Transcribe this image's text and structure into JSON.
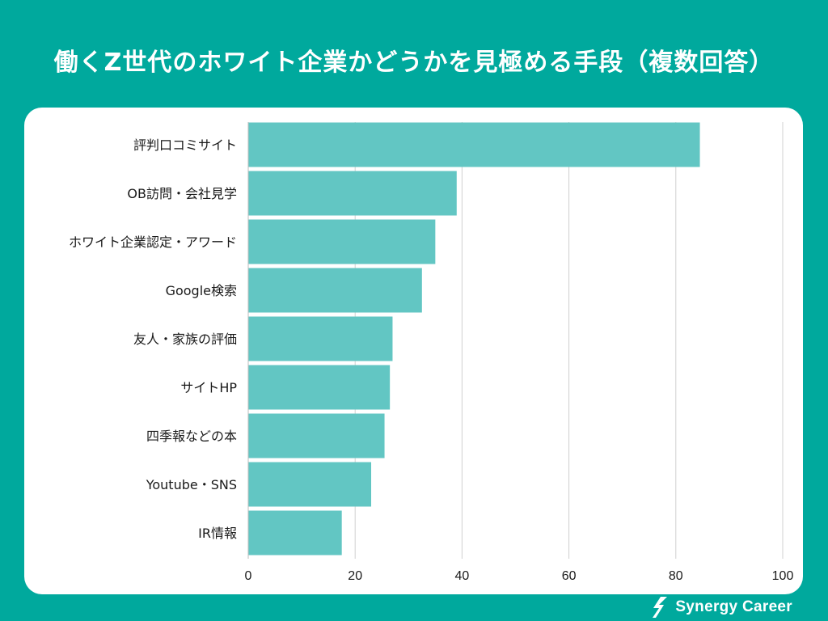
{
  "header": {
    "title": "働くZ世代のホワイト企業かどうかを見極める手段（複数回答）"
  },
  "brand": {
    "name": "Synergy Career",
    "logo_icon": "synergy-career-mark-icon"
  },
  "colors": {
    "background": "#00a99d",
    "bar": "#62c6c3",
    "card": "#ffffff",
    "grid": "#d0d0d0",
    "text": "#1a1a1a"
  },
  "chart_data": {
    "type": "bar",
    "orientation": "horizontal",
    "title": "働くZ世代のホワイト企業かどうかを見極める手段（複数回答）",
    "xlabel": "",
    "ylabel": "",
    "categories": [
      "評判口コミサイト",
      "OB訪問・会社見学",
      "ホワイト企業認定・アワード",
      "Google検索",
      "友人・家族の評価",
      "サイトHP",
      "四季報などの本",
      "Youtube・SNS",
      "IR情報"
    ],
    "values": [
      84.5,
      39,
      35,
      32.5,
      27,
      26.5,
      25.5,
      23,
      17.5
    ],
    "xlim": [
      0,
      100
    ],
    "xticks": [
      0,
      20,
      40,
      60,
      80,
      100
    ],
    "grid": true,
    "legend": "none"
  }
}
